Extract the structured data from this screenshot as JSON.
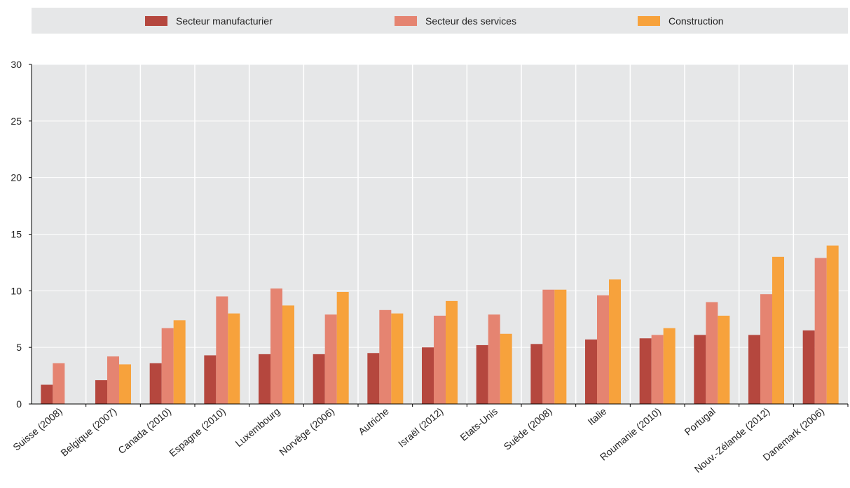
{
  "chart_data": {
    "type": "bar",
    "categories": [
      "Suisse (2008)",
      "Belgique (2007)",
      "Canada (2010)",
      "Espagne (2010)",
      "Luxembourg",
      "Norvège (2006)",
      "Autriche",
      "Israël (2012)",
      "Etats-Unis",
      "Suède (2008)",
      "Italie",
      "Roumanie (2010)",
      "Portugal",
      "Nouv.-Zélande (2012)",
      "Danemark (2006)"
    ],
    "series": [
      {
        "name": "Secteur manufacturier",
        "color": "#b5473e",
        "values": [
          1.7,
          2.1,
          3.6,
          4.3,
          4.4,
          4.4,
          4.5,
          5.0,
          5.2,
          5.3,
          5.7,
          5.8,
          6.1,
          6.1,
          6.5
        ]
      },
      {
        "name": "Secteur des services",
        "color": "#e58471",
        "values": [
          3.6,
          4.2,
          6.7,
          9.5,
          10.2,
          7.9,
          8.3,
          7.8,
          7.9,
          10.1,
          9.6,
          6.1,
          9.0,
          9.7,
          12.9
        ]
      },
      {
        "name": "Construction",
        "color": "#f7a23c",
        "values": [
          null,
          3.5,
          7.4,
          8.0,
          8.7,
          9.9,
          8.0,
          9.1,
          6.2,
          10.1,
          11.0,
          6.7,
          7.8,
          13.0,
          14.0
        ]
      }
    ],
    "yticks": [
      "0",
      "5",
      "10",
      "15",
      "20",
      "25",
      "30"
    ],
    "ylim": [
      0,
      30
    ],
    "title": "",
    "xlabel": "",
    "ylabel": "",
    "grid": true,
    "legend_position": "top"
  }
}
